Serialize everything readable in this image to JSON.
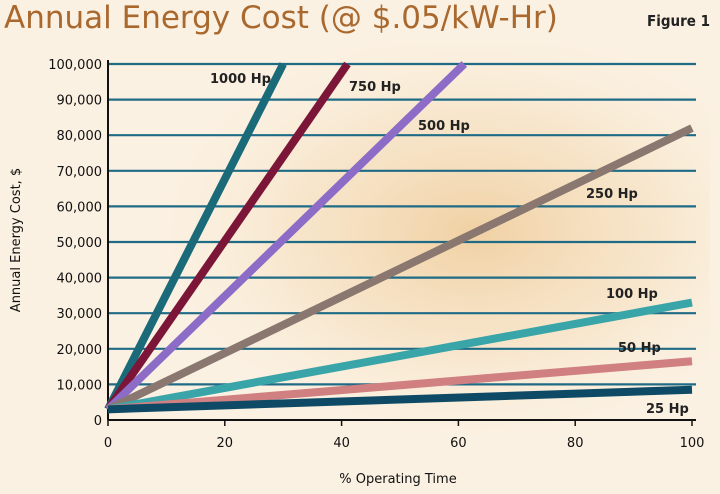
{
  "header": {
    "title": "Annual Energy Cost (@ $.05/kW-Hr)",
    "figure_label": "Figure 1"
  },
  "colors": {
    "title": "#a8682e",
    "grid": "#1f6b86",
    "background": "#fbf1e2",
    "glow": "#f2d6b0"
  },
  "chart_data": {
    "type": "line",
    "title": "Annual Energy Cost (@ $.05/kW-Hr)",
    "xlabel": "% Operating Time",
    "ylabel": "Annual Energy Cost, $",
    "xlim": [
      0,
      100
    ],
    "ylim": [
      0,
      100000
    ],
    "x_ticks": [
      0,
      20,
      40,
      60,
      80,
      100
    ],
    "y_ticks": [
      0,
      10000,
      20000,
      30000,
      40000,
      50000,
      60000,
      70000,
      80000,
      90000,
      100000
    ],
    "x_tick_labels": [
      "0",
      "20",
      "40",
      "60",
      "80",
      "100"
    ],
    "y_tick_labels": [
      "0",
      "10,000",
      "20,000",
      "30,000",
      "40,000",
      "50,000",
      "60,000",
      "70,000",
      "80,000",
      "90,000",
      "100,000"
    ],
    "grid": true,
    "series": [
      {
        "name": "1000 Hp",
        "color": "#1a6a7a",
        "points": [
          [
            0,
            3000
          ],
          [
            30,
            100000
          ]
        ]
      },
      {
        "name": "750 Hp",
        "color": "#7c1638",
        "points": [
          [
            0,
            3000
          ],
          [
            41,
            100000
          ]
        ]
      },
      {
        "name": "500 Hp",
        "color": "#8c6cc6",
        "points": [
          [
            0,
            3000
          ],
          [
            61,
            100000
          ]
        ]
      },
      {
        "name": "250 Hp",
        "color": "#8a7870",
        "points": [
          [
            0,
            3000
          ],
          [
            100,
            82000
          ]
        ]
      },
      {
        "name": "100 Hp",
        "color": "#3aa5a8",
        "points": [
          [
            0,
            3000
          ],
          [
            100,
            33000
          ]
        ]
      },
      {
        "name": "50 Hp",
        "color": "#d08080",
        "points": [
          [
            0,
            3000
          ],
          [
            100,
            16500
          ]
        ]
      },
      {
        "name": "25 Hp",
        "color": "#0e4a66",
        "points": [
          [
            0,
            3000
          ],
          [
            100,
            8500
          ]
        ]
      }
    ]
  }
}
